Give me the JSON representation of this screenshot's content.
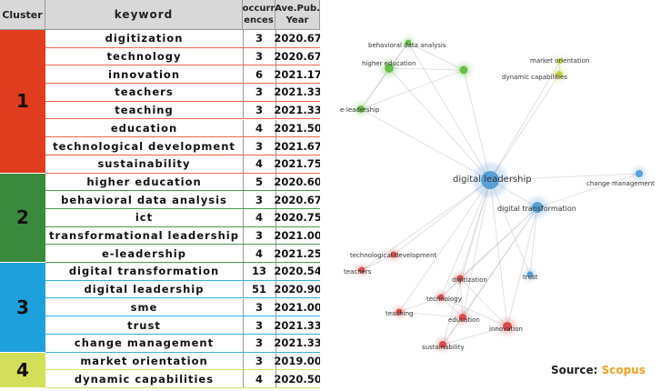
{
  "headers": {
    "cluster": "Cluster",
    "keyword": "keyword",
    "occurrences_1": "occurr",
    "occurrences_2": "ences",
    "year_1": "Ave.Pub.",
    "year_2": "Year"
  },
  "clusters": [
    {
      "label": "1",
      "color": "#e03c1e",
      "row_border": "#e8684a",
      "rows": [
        {
          "keyword": "digitization",
          "occurrences": "3",
          "year": "2020.67"
        },
        {
          "keyword": "technology",
          "occurrences": "3",
          "year": "2020.67"
        },
        {
          "keyword": "innovation",
          "occurrences": "6",
          "year": "2021.17"
        },
        {
          "keyword": "teachers",
          "occurrences": "3",
          "year": "2021.33"
        },
        {
          "keyword": "teaching",
          "occurrences": "3",
          "year": "2021.33"
        },
        {
          "keyword": "education",
          "occurrences": "4",
          "year": "2021.50"
        },
        {
          "keyword": "technological development",
          "occurrences": "3",
          "year": "2021.67"
        },
        {
          "keyword": "sustainability",
          "occurrences": "4",
          "year": "2021.75"
        }
      ]
    },
    {
      "label": "2",
      "color": "#3a8a3e",
      "row_border": "#4c9a50",
      "rows": [
        {
          "keyword": "higher education",
          "occurrences": "5",
          "year": "2020.60"
        },
        {
          "keyword": "behavioral data analysis",
          "occurrences": "3",
          "year": "2020.67"
        },
        {
          "keyword": "ict",
          "occurrences": "4",
          "year": "2020.75"
        },
        {
          "keyword": "transformational leadership",
          "occurrences": "3",
          "year": "2021.00"
        },
        {
          "keyword": "e-leadership",
          "occurrences": "4",
          "year": "2021.25"
        }
      ]
    },
    {
      "label": "3",
      "color": "#1ea0dc",
      "row_border": "#38aee2",
      "rows": [
        {
          "keyword": "digital transformation",
          "occurrences": "13",
          "year": "2020.54"
        },
        {
          "keyword": "digital leadership",
          "occurrences": "51",
          "year": "2020.90"
        },
        {
          "keyword": "sme",
          "occurrences": "3",
          "year": "2021.00"
        },
        {
          "keyword": "trust",
          "occurrences": "3",
          "year": "2021.33"
        },
        {
          "keyword": "change management",
          "occurrences": "3",
          "year": "2021.33"
        }
      ]
    },
    {
      "label": "4",
      "color": "#d3df58",
      "row_border": "#d6e06a",
      "rows": [
        {
          "keyword": "market orientation",
          "occurrences": "3",
          "year": "2019.00"
        },
        {
          "keyword": "dynamic capabilities",
          "occurrences": "4",
          "year": "2020.50"
        }
      ]
    }
  ],
  "network": {
    "colors": {
      "red": "#d94c4c",
      "green": "#6abf4a",
      "blue": "#5a9fd6",
      "yellow": "#c8d24a"
    },
    "nodes": [
      {
        "id": "dl",
        "label": "digital leadership",
        "color": "blue"
      },
      {
        "id": "dt",
        "label": "digital transformation",
        "color": "blue"
      },
      {
        "id": "cm",
        "label": "change management",
        "color": "blue"
      },
      {
        "id": "tr",
        "label": "trust",
        "color": "blue"
      },
      {
        "id": "bda",
        "label": "behavioral data analysis",
        "color": "green"
      },
      {
        "id": "he",
        "label": "higher education",
        "color": "green"
      },
      {
        "id": "ict",
        "label": "",
        "color": "green"
      },
      {
        "id": "el",
        "label": "e-leadership",
        "color": "green"
      },
      {
        "id": "mo",
        "label": "market orientation",
        "color": "yellow"
      },
      {
        "id": "dc",
        "label": "dynamic capabilities",
        "color": "yellow"
      },
      {
        "id": "td",
        "label": "technological development",
        "color": "red"
      },
      {
        "id": "tc",
        "label": "teachers",
        "color": "red"
      },
      {
        "id": "dg",
        "label": "digitization",
        "color": "red"
      },
      {
        "id": "te",
        "label": "technology",
        "color": "red"
      },
      {
        "id": "tg",
        "label": "teaching",
        "color": "red"
      },
      {
        "id": "ed",
        "label": "education",
        "color": "red"
      },
      {
        "id": "in",
        "label": "innovation",
        "color": "red"
      },
      {
        "id": "su",
        "label": "sustainability",
        "color": "red"
      }
    ],
    "edges": [
      [
        "dl",
        "dt"
      ],
      [
        "dl",
        "cm"
      ],
      [
        "dl",
        "tr"
      ],
      [
        "dl",
        "bda"
      ],
      [
        "dl",
        "he"
      ],
      [
        "dl",
        "ict"
      ],
      [
        "dl",
        "el"
      ],
      [
        "dl",
        "mo"
      ],
      [
        "dl",
        "dc"
      ],
      [
        "dl",
        "td"
      ],
      [
        "dl",
        "tc"
      ],
      [
        "dl",
        "dg"
      ],
      [
        "dl",
        "te"
      ],
      [
        "dl",
        "tg"
      ],
      [
        "dl",
        "ed"
      ],
      [
        "dl",
        "in"
      ],
      [
        "dl",
        "su"
      ],
      [
        "dt",
        "dg"
      ],
      [
        "dt",
        "in"
      ],
      [
        "dt",
        "su"
      ],
      [
        "dt",
        "ed"
      ],
      [
        "dt",
        "te"
      ],
      [
        "dt",
        "tr"
      ],
      [
        "dt",
        "cm"
      ],
      [
        "he",
        "bda"
      ],
      [
        "he",
        "el"
      ],
      [
        "he",
        "ict"
      ],
      [
        "el",
        "bda"
      ],
      [
        "el",
        "ict"
      ],
      [
        "bda",
        "ict"
      ],
      [
        "mo",
        "dc"
      ],
      [
        "td",
        "tc"
      ],
      [
        "dg",
        "te"
      ],
      [
        "te",
        "tg"
      ],
      [
        "te",
        "ed"
      ],
      [
        "tg",
        "ed"
      ],
      [
        "ed",
        "su"
      ],
      [
        "in",
        "su"
      ],
      [
        "in",
        "dg"
      ],
      [
        "dg",
        "ed"
      ],
      [
        "in",
        "te"
      ]
    ]
  },
  "source": {
    "label": "Source:",
    "name": "Scopus"
  }
}
